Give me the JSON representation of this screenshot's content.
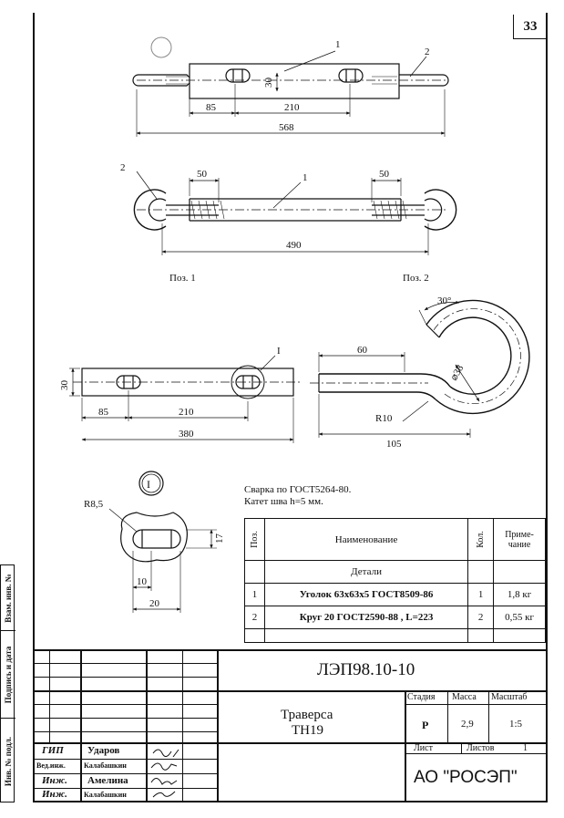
{
  "page_number": "33",
  "drawing": {
    "pos_labels": [
      "1",
      "2"
    ],
    "views": {
      "top": {
        "dims": [
          "85",
          "210",
          "30",
          "568"
        ]
      },
      "front": {
        "dims": [
          "50",
          "50",
          "490"
        ]
      },
      "pos_captions": [
        "Поз. 1",
        "Поз. 2"
      ],
      "pos1": {
        "dims": [
          "30",
          "85",
          "210",
          "380"
        ],
        "detail_mark": "I"
      },
      "pos2": {
        "dims": [
          "30°",
          "60",
          "⌀38",
          "R10",
          "105"
        ]
      },
      "detail": {
        "mark": "I",
        "dims": [
          "R8,5",
          "17",
          "10",
          "20"
        ]
      }
    }
  },
  "notes": {
    "line1": "Сварка по ГОСТ5264-80.",
    "line2": "Катет шва h=5 мм."
  },
  "parts_table": {
    "headers": {
      "pos": "Поз.",
      "name": "Наименование",
      "qty": "Кол.",
      "note": "Приме-чание"
    },
    "section": "Детали",
    "rows": [
      {
        "pos": "1",
        "name": "Уголок 63x63x5 ГОСТ8509-86",
        "qty": "1",
        "note": "1,8 кг"
      },
      {
        "pos": "2",
        "name": "Круг 20 ГОСТ2590-88 , L=223",
        "qty": "2",
        "note": "0,55 кг"
      }
    ]
  },
  "title_block": {
    "doc_code": "ЛЭП98.10-10",
    "title_line1": "Траверса",
    "title_line2": "ТН19",
    "stage_label": "Стадия",
    "mass_label": "Масса",
    "scale_label": "Масштаб",
    "stage": "Р",
    "mass": "2,9",
    "scale": "1:5",
    "sheet_label": "Лист",
    "sheets_label": "Листов",
    "sheets": "1",
    "company": "АО \"РОСЭП\"",
    "signatures": [
      {
        "role": "ГИП",
        "name": "Ударов"
      },
      {
        "role": "Вед.инж.",
        "name": "Калабашкин"
      },
      {
        "role": "Инж.",
        "name": "Амелина"
      },
      {
        "role": "Инж.",
        "name": "Калабашкин"
      }
    ]
  },
  "sidebar": {
    "cells": [
      "Взам. инв. №",
      "Подпись и дата",
      "Инв. № подл."
    ]
  }
}
